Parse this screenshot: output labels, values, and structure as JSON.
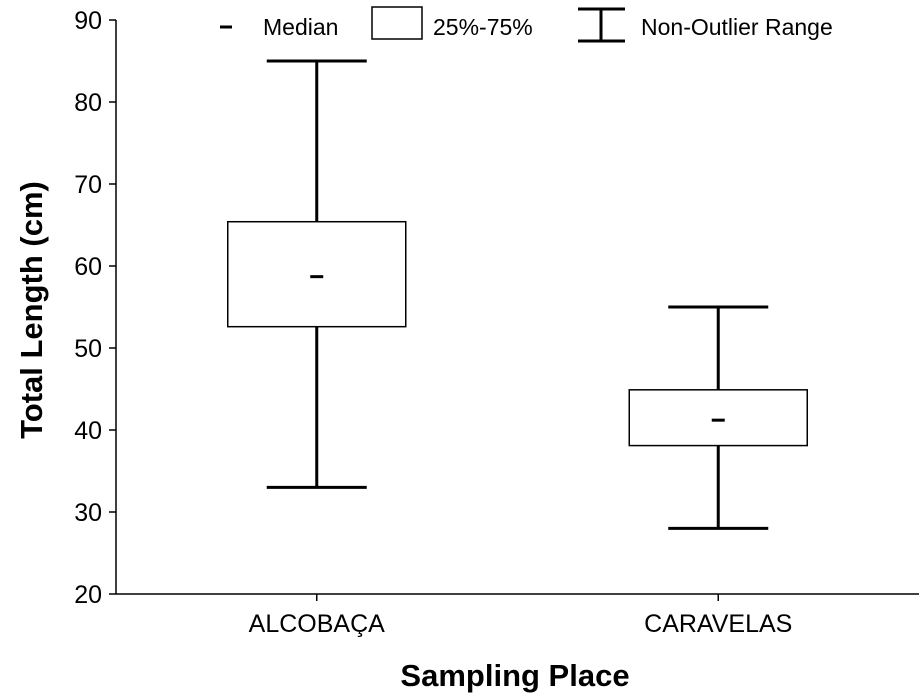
{
  "chart_data": {
    "type": "box",
    "xlabel": "Sampling Place",
    "ylabel": "Total Length (cm)",
    "ylim": [
      20,
      90
    ],
    "yticks": [
      "20",
      "30",
      "40",
      "50",
      "60",
      "70",
      "80",
      "90"
    ],
    "categories": [
      "ALCOBAÇA",
      "CARAVELAS"
    ],
    "boxes": [
      {
        "category": "ALCOBAÇA",
        "min": 33,
        "q1": 52.6,
        "median": 58.7,
        "q3": 65.4,
        "max": 85
      },
      {
        "category": "CARAVELAS",
        "min": 28,
        "q1": 38.1,
        "median": 41.2,
        "q3": 44.9,
        "max": 55
      }
    ],
    "legend": {
      "position": "top",
      "items": [
        "Median",
        "25%-75%",
        "Non-Outlier Range"
      ]
    },
    "grid": false,
    "colors": {
      "line": "#000000",
      "box_fill": "#ffffff",
      "background": "#ffffff"
    }
  }
}
